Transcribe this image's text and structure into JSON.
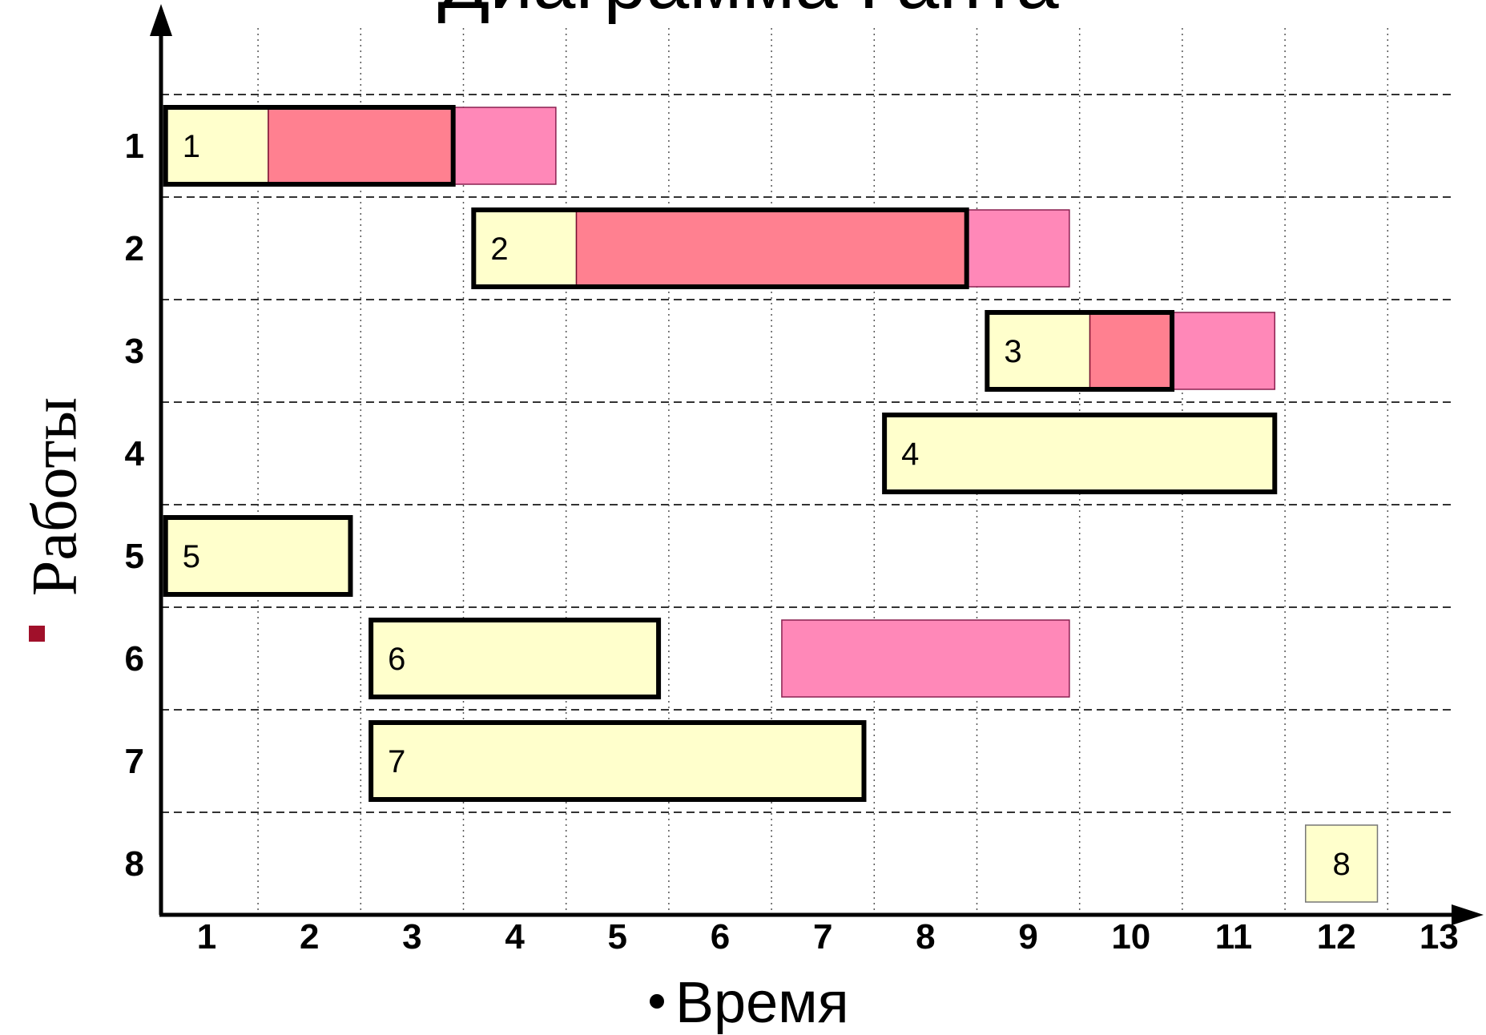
{
  "chart_data": {
    "type": "gantt",
    "title": "Диаграмма Ганта",
    "xlabel": "Время",
    "ylabel": "Работы",
    "x_ticks": [
      "1",
      "2",
      "3",
      "4",
      "5",
      "6",
      "7",
      "8",
      "9",
      "10",
      "11",
      "12",
      "13"
    ],
    "y_ticks": [
      "1",
      "2",
      "3",
      "4",
      "5",
      "6",
      "7",
      "8"
    ],
    "xlim": [
      0.5,
      13.5
    ],
    "grid": true,
    "colors": {
      "base": "#ffffcc",
      "critical": "#ff8090",
      "reserve": "#ff88b8",
      "accent": "#a0102a"
    },
    "tasks": [
      {
        "label": "1",
        "row": 1,
        "start": 0.6,
        "end": 3.4,
        "outlined": true,
        "segments": [
          {
            "kind": "base",
            "start": 0.6,
            "end": 1.6
          },
          {
            "kind": "critical",
            "start": 1.6,
            "end": 3.4
          },
          {
            "kind": "reserve",
            "start": 3.4,
            "end": 4.4
          }
        ]
      },
      {
        "label": "2",
        "row": 2,
        "start": 3.6,
        "end": 8.4,
        "outlined": true,
        "segments": [
          {
            "kind": "base",
            "start": 3.6,
            "end": 4.6
          },
          {
            "kind": "critical",
            "start": 4.6,
            "end": 8.4
          },
          {
            "kind": "reserve",
            "start": 8.4,
            "end": 9.4
          }
        ]
      },
      {
        "label": "3",
        "row": 3,
        "start": 8.6,
        "end": 10.4,
        "outlined": true,
        "segments": [
          {
            "kind": "base",
            "start": 8.6,
            "end": 9.6
          },
          {
            "kind": "critical",
            "start": 9.6,
            "end": 10.4
          },
          {
            "kind": "reserve",
            "start": 10.4,
            "end": 11.4
          }
        ]
      },
      {
        "label": "4",
        "row": 4,
        "start": 7.6,
        "end": 11.4,
        "outlined": true,
        "segments": [
          {
            "kind": "base",
            "start": 7.6,
            "end": 11.4
          }
        ]
      },
      {
        "label": "5",
        "row": 5,
        "start": 0.6,
        "end": 2.4,
        "outlined": true,
        "segments": [
          {
            "kind": "base",
            "start": 0.6,
            "end": 2.4
          }
        ]
      },
      {
        "label": "6",
        "row": 6,
        "start": 2.6,
        "end": 5.4,
        "outlined": true,
        "segments": [
          {
            "kind": "base",
            "start": 2.6,
            "end": 5.4
          },
          {
            "kind": "reserve",
            "start": 6.6,
            "end": 9.4
          }
        ]
      },
      {
        "label": "7",
        "row": 7,
        "start": 2.6,
        "end": 7.4,
        "outlined": true,
        "segments": [
          {
            "kind": "base",
            "start": 2.6,
            "end": 7.4
          }
        ]
      },
      {
        "label": "8",
        "row": 8,
        "start": 11.7,
        "end": 12.4,
        "outlined": false,
        "segments": [
          {
            "kind": "base",
            "start": 11.7,
            "end": 12.4
          }
        ]
      }
    ]
  }
}
